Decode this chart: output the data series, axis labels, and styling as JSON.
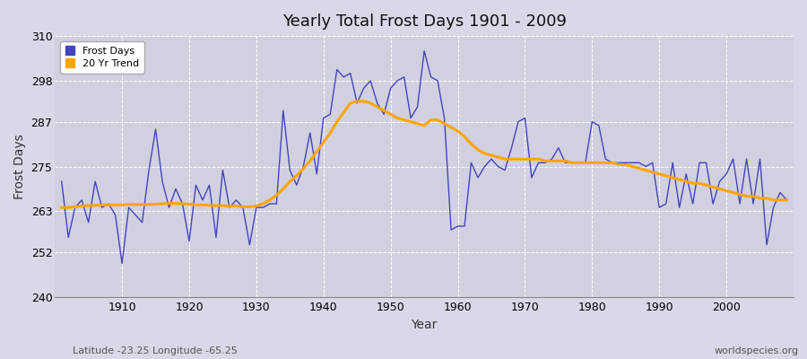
{
  "title": "Yearly Total Frost Days 1901 - 2009",
  "xlabel": "Year",
  "ylabel": "Frost Days",
  "footnote_left": "Latitude -23.25 Longitude -65.25",
  "footnote_right": "worldspecies.org",
  "legend_entries": [
    "Frost Days",
    "20 Yr Trend"
  ],
  "line_color": "#4444bb",
  "trend_color": "#FFA500",
  "fig_bg_color": "#d8d8e8",
  "plot_bg_color": "#d0d0e0",
  "ylim": [
    240,
    310
  ],
  "yticks": [
    240,
    252,
    263,
    275,
    287,
    298,
    310
  ],
  "xticks": [
    1910,
    1920,
    1930,
    1940,
    1950,
    1960,
    1970,
    1980,
    1990,
    2000
  ],
  "years": [
    1901,
    1902,
    1903,
    1904,
    1905,
    1906,
    1907,
    1908,
    1909,
    1910,
    1911,
    1912,
    1913,
    1914,
    1915,
    1916,
    1917,
    1918,
    1919,
    1920,
    1921,
    1922,
    1923,
    1924,
    1925,
    1926,
    1927,
    1928,
    1929,
    1930,
    1931,
    1932,
    1933,
    1934,
    1935,
    1936,
    1937,
    1938,
    1939,
    1940,
    1941,
    1942,
    1943,
    1944,
    1945,
    1946,
    1947,
    1948,
    1949,
    1950,
    1951,
    1952,
    1953,
    1954,
    1955,
    1956,
    1957,
    1958,
    1959,
    1960,
    1961,
    1962,
    1963,
    1964,
    1965,
    1966,
    1967,
    1968,
    1969,
    1970,
    1971,
    1972,
    1973,
    1974,
    1975,
    1976,
    1977,
    1978,
    1979,
    1980,
    1981,
    1982,
    1983,
    1984,
    1985,
    1986,
    1987,
    1988,
    1989,
    1990,
    1991,
    1992,
    1993,
    1994,
    1995,
    1996,
    1997,
    1998,
    1999,
    2000,
    2001,
    2002,
    2003,
    2004,
    2005,
    2006,
    2007,
    2008,
    2009
  ],
  "frost_days": [
    271,
    256,
    264,
    266,
    260,
    271,
    264,
    265,
    262,
    249,
    264,
    262,
    260,
    274,
    285,
    271,
    264,
    269,
    265,
    255,
    270,
    266,
    270,
    256,
    274,
    264,
    266,
    264,
    254,
    264,
    264,
    265,
    265,
    290,
    274,
    270,
    275,
    284,
    273,
    288,
    289,
    301,
    299,
    300,
    292,
    296,
    298,
    292,
    289,
    296,
    298,
    299,
    288,
    291,
    306,
    299,
    298,
    288,
    258,
    259,
    259,
    276,
    272,
    275,
    277,
    275,
    274,
    280,
    287,
    288,
    272,
    276,
    276,
    277,
    280,
    276,
    276,
    276,
    276,
    287,
    286,
    277,
    276,
    276,
    276,
    276,
    276,
    275,
    276,
    264,
    265,
    276,
    264,
    273,
    265,
    276,
    276,
    265,
    271,
    273,
    277,
    265,
    277,
    265,
    277,
    254,
    264,
    268,
    266
  ],
  "trend": [
    264,
    264,
    264.2,
    264.4,
    264.5,
    264.6,
    264.7,
    264.7,
    264.7,
    264.7,
    264.8,
    264.8,
    264.8,
    264.8,
    264.9,
    265.0,
    265.1,
    265.1,
    265.0,
    264.9,
    264.7,
    264.7,
    264.6,
    264.5,
    264.5,
    264.4,
    264.4,
    264.2,
    264.2,
    264.4,
    265.0,
    266.0,
    267.3,
    269.0,
    271.0,
    272.5,
    274.5,
    276.5,
    279.0,
    281.5,
    284.0,
    287.0,
    289.5,
    292.0,
    292.5,
    292.5,
    292.0,
    291.0,
    290.0,
    289.0,
    288.0,
    287.5,
    287.0,
    286.5,
    286.0,
    287.5,
    287.5,
    286.5,
    285.5,
    284.5,
    283.0,
    281.0,
    279.5,
    278.5,
    278.0,
    277.5,
    277.0,
    277.0,
    277.0,
    277.0,
    277.0,
    277.0,
    276.5,
    276.5,
    276.5,
    276.5,
    276.0,
    276.0,
    276.0,
    276.0,
    276.0,
    276.0,
    276.0,
    275.5,
    275.5,
    275.0,
    274.5,
    274.0,
    273.5,
    273.0,
    272.5,
    272.0,
    271.5,
    271.0,
    270.5,
    270.5,
    270.0,
    269.5,
    269.0,
    268.5,
    268.0,
    267.5,
    267.0,
    267.0,
    266.5,
    266.5,
    266.0,
    266.0,
    266.0
  ]
}
